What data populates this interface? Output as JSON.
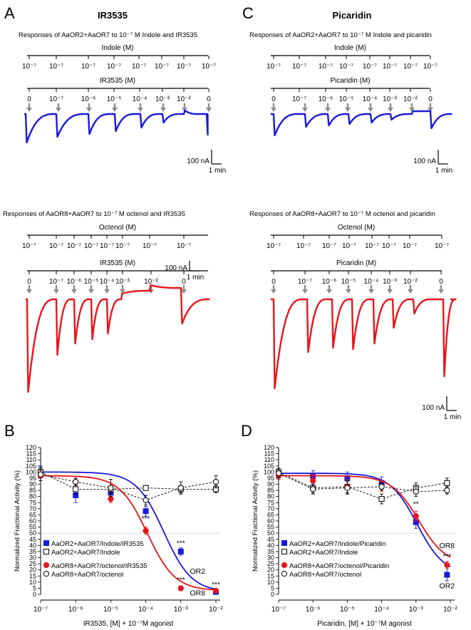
{
  "panels": {
    "A": {
      "letter": "A",
      "title": "IR3535",
      "top": {
        "caption": "Responses of AaOR2+AaOR7 to  10⁻⁷ M Indole and IR3535",
        "agonist_label": "Indole (M)",
        "agonist_ticks": [
          "10⁻⁷",
          "10⁻⁷",
          "10⁻⁷",
          "10⁻⁷",
          "10⁻⁷",
          "10⁻⁷",
          "10⁻⁷",
          "10⁻⁷"
        ],
        "drug_label": "IR3535 (M)",
        "drug_ticks": [
          "0",
          "10⁻⁷",
          "10⁻⁶",
          "10⁻⁵",
          "10⁻⁴",
          "10⁻³",
          "10⁻²",
          "0"
        ],
        "scale_y": "100 nA",
        "scale_x": "1 min",
        "trace_color": "#1a1adb"
      },
      "bottom": {
        "caption": "Responses of AaOR8+AaOR7 to  10⁻⁷ M octenol and IR3535",
        "agonist_label": "Octenol (M)",
        "agonist_ticks": [
          "10⁻⁷",
          "10⁻⁷",
          "10⁻⁷",
          "10⁻⁷",
          "10⁻⁷",
          "10⁻⁷",
          "10⁻⁷",
          "10⁻⁷"
        ],
        "drug_label": "IR3535 (M)",
        "drug_ticks": [
          "0",
          "10⁻⁷",
          "10⁻⁶",
          "10⁻⁵",
          "10⁻⁴",
          "10⁻³",
          "10⁻²",
          "0"
        ],
        "scale_y": "100 nA",
        "scale_x": "1 min",
        "trace_color": "#e8151b"
      }
    },
    "C": {
      "letter": "C",
      "title": "Picaridin",
      "top": {
        "caption": "Responses of AaOR2+AaOR7 to 10⁻⁷ M Indole and picaridin",
        "agonist_label": "Indole (M)",
        "agonist_ticks": [
          "10⁻⁷",
          "10⁻⁷",
          "10⁻⁷",
          "10⁻⁷",
          "10⁻⁷",
          "10⁻⁷",
          "10⁻⁷",
          "10⁻⁷"
        ],
        "drug_label": "Picaridin (M)",
        "drug_ticks": [
          "0",
          "10⁻⁷",
          "10⁻⁶",
          "10⁻⁵",
          "10⁻⁴",
          "10⁻³",
          "10⁻²",
          "0"
        ],
        "scale_y": "100 nA",
        "scale_x": "1 min",
        "trace_color": "#1a1adb"
      },
      "bottom": {
        "caption": "Responses of AaOR8+AaOR7 to  10⁻⁷ M octenol and picaridin",
        "agonist_label": "Octenol (M)",
        "agonist_ticks": [
          "10⁻⁷",
          "10⁻⁷",
          "10⁻⁷",
          "10⁻⁷",
          "10⁻⁷",
          "10⁻⁷",
          "10⁻⁷",
          "10⁻⁷"
        ],
        "drug_label": "Picaridin (M)",
        "drug_ticks": [
          "0",
          "10⁻⁷",
          "10⁻⁶",
          "10⁻⁵",
          "10⁻⁴",
          "10⁻³",
          "10⁻²",
          "0"
        ],
        "scale_y": "100 nA",
        "scale_x": "1 min",
        "trace_color": "#e8151b"
      }
    },
    "B": {
      "letter": "B"
    },
    "D": {
      "letter": "D"
    }
  },
  "colors": {
    "blue": "#1a1adb",
    "red": "#e8151b",
    "gray_arrow": "#8c8c8c"
  },
  "chart_data": [
    {
      "type": "scatter",
      "panel": "B",
      "ylabel": "Normalized Fractional Activity (%)",
      "xlabel": "IR3535, [M] + 10⁻⁷M agonist",
      "x_scale": "log",
      "x_ticks": [
        "10⁻⁷",
        "10⁻⁶",
        "10⁻⁵",
        "10⁻⁴",
        "10⁻³",
        "10⁻²"
      ],
      "xlim": [
        1e-07,
        0.01
      ],
      "ylim": [
        0,
        120
      ],
      "y_ticks": [
        0,
        5,
        10,
        15,
        20,
        25,
        30,
        35,
        40,
        45,
        50,
        55,
        60,
        65,
        70,
        75,
        80,
        85,
        90,
        95,
        100,
        105,
        110,
        115,
        120
      ],
      "reference_line": 50,
      "series": [
        {
          "name": "AaOR2+AaOR7/Indole/IR3535",
          "color": "#1a1adb",
          "marker": "filled-square",
          "fit": "sigmoid",
          "x": [
            1e-07,
            1e-06,
            1e-05,
            0.0001,
            0.001,
            0.01
          ],
          "y": [
            100,
            81,
            83,
            68,
            35,
            2
          ],
          "err": [
            5,
            6,
            5,
            4,
            3,
            2
          ]
        },
        {
          "name": "AaOR2+AaOR7/Indole",
          "color": "#000000",
          "marker": "open-square",
          "fit": "dashed",
          "x": [
            1e-07,
            1e-06,
            1e-05,
            0.0001,
            0.001,
            0.01
          ],
          "y": [
            100,
            86,
            86,
            87,
            86,
            86
          ],
          "err": [
            4,
            4,
            3,
            2,
            3,
            3
          ]
        },
        {
          "name": "AaOR8+AaOR7/octenol/IR3535",
          "color": "#e8151b",
          "marker": "filled-circle",
          "fit": "sigmoid",
          "x": [
            1e-07,
            1e-06,
            1e-05,
            0.0001,
            0.001,
            0.01
          ],
          "y": [
            97,
            92,
            78,
            52,
            5,
            3
          ],
          "err": [
            4,
            3,
            3,
            3,
            2,
            1
          ]
        },
        {
          "name": "AaOR8+AaOR7/octenol",
          "color": "#000000",
          "marker": "open-circle",
          "fit": "dashed",
          "x": [
            1e-07,
            1e-06,
            1e-05,
            0.0001,
            0.001,
            0.01
          ],
          "y": [
            98,
            92,
            87,
            77,
            87,
            92
          ],
          "err": [
            5,
            3,
            7,
            4,
            5,
            5
          ]
        }
      ],
      "annotations": [
        {
          "text": "***",
          "x": 0.0001,
          "y": 60
        },
        {
          "text": "***",
          "x": 0.001,
          "y": 40
        },
        {
          "text": "***",
          "x": 0.001,
          "y": 10
        },
        {
          "text": "***",
          "x": 0.01,
          "y": 6
        },
        {
          "text": "OR2",
          "x": 0.003,
          "y": 17
        },
        {
          "text": "OR8",
          "x": 0.003,
          "y": -1
        }
      ]
    },
    {
      "type": "scatter",
      "panel": "D",
      "ylabel": "Normalized Fractional Activity (%)",
      "xlabel": "Picaridin, [M] + 10⁻⁷M agonist",
      "x_scale": "log",
      "x_ticks": [
        "10⁻⁷",
        "10⁻⁶",
        "10⁻⁵",
        "10⁻⁴",
        "10⁻³",
        "10⁻²"
      ],
      "xlim": [
        1e-07,
        0.01
      ],
      "ylim": [
        0,
        120
      ],
      "y_ticks": [
        0,
        5,
        10,
        15,
        20,
        25,
        30,
        35,
        40,
        45,
        50,
        55,
        60,
        65,
        70,
        75,
        80,
        85,
        90,
        95,
        100,
        105,
        110,
        115,
        120
      ],
      "reference_line": 50,
      "series": [
        {
          "name": "AaOR2+AaOR7/Indole/Picaridin",
          "color": "#1a1adb",
          "marker": "filled-square",
          "fit": "sigmoid",
          "x": [
            1e-07,
            1e-06,
            1e-05,
            0.0001,
            0.001,
            0.008
          ],
          "y": [
            99,
            97,
            95,
            91,
            59,
            16
          ],
          "err": [
            3,
            4,
            5,
            5,
            5,
            5
          ]
        },
        {
          "name": "AaOR2+AaOR7/Indole",
          "color": "#000000",
          "marker": "open-square",
          "fit": "dashed",
          "x": [
            1e-07,
            1e-06,
            1e-05,
            0.0001,
            0.001,
            0.008
          ],
          "y": [
            100,
            87,
            88,
            78,
            87,
            91
          ],
          "err": [
            3,
            4,
            5,
            4,
            4,
            4
          ]
        },
        {
          "name": "AaOR8+AaOR7/octenol/Picaridin",
          "color": "#e8151b",
          "marker": "filled-circle",
          "fit": "sigmoid",
          "x": [
            1e-07,
            1e-06,
            1e-05,
            0.0001,
            0.001,
            0.008
          ],
          "y": [
            97,
            93,
            88,
            88,
            64,
            24
          ],
          "err": [
            3,
            5,
            6,
            4,
            4,
            3
          ]
        },
        {
          "name": "AaOR8+AaOR7/octenol",
          "color": "#000000",
          "marker": "open-circle",
          "fit": "dashed",
          "x": [
            1e-07,
            1e-06,
            1e-05,
            0.0001,
            0.001,
            0.008
          ],
          "y": [
            99,
            86,
            87,
            88,
            84,
            85
          ],
          "err": [
            4,
            4,
            5,
            3,
            4,
            3
          ]
        }
      ],
      "annotations": [
        {
          "text": "**",
          "x": 0.001,
          "y": 72
        },
        {
          "text": "***",
          "x": 0.008,
          "y": 29
        },
        {
          "text": "OR8",
          "x": 0.008,
          "y": 38
        },
        {
          "text": "OR2",
          "x": 0.008,
          "y": 5
        }
      ]
    }
  ]
}
